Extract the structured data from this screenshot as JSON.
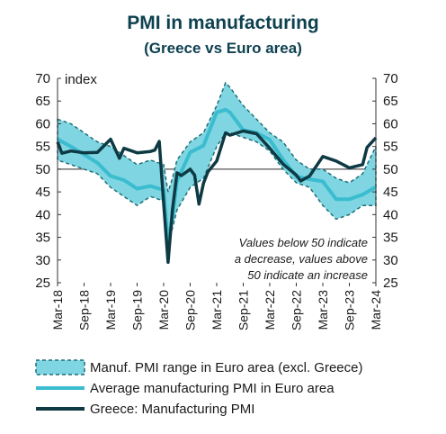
{
  "title": "PMI in manufacturing",
  "subtitle": "(Greece vs Euro area)",
  "colors": {
    "range_fill": "#7fd6e2",
    "range_border": "#1f6f78",
    "euro_avg": "#3bbccf",
    "greece": "#0e3a44",
    "ref_line": "#555555"
  },
  "chart_data": {
    "type": "line",
    "ylabel": "index",
    "ylim": [
      25,
      70
    ],
    "yticks": [
      25,
      30,
      35,
      40,
      45,
      50,
      55,
      60,
      65,
      70
    ],
    "xticks": [
      "Mar-18",
      "Sep-18",
      "Mar-19",
      "Sep-19",
      "Mar-20",
      "Sep-20",
      "Mar-21",
      "Sep-21",
      "Mar-22",
      "Sep-22",
      "Mar-23",
      "Sep-23",
      "Mar-24"
    ],
    "reference_line": 50,
    "annotation": [
      "Values below 50 indicate",
      "a decrease, values above",
      "50 indicate an increase"
    ],
    "legend": [
      {
        "label": "Manuf. PMI range in Euro area (excl. Greece)",
        "kind": "band"
      },
      {
        "label": "Average manufacturing PMI in Euro area",
        "kind": "line"
      },
      {
        "label": "Greece: Manufacturing PMI",
        "kind": "line"
      }
    ],
    "series": [
      {
        "name": "Manuf. PMI range in Euro area (excl. Greece)",
        "type": "range",
        "x": [
          "Mar-18",
          "Jun-18",
          "Sep-18",
          "Dec-18",
          "Mar-19",
          "Jun-19",
          "Sep-19",
          "Dec-19",
          "Mar-20",
          "Apr-20",
          "May-20",
          "Jun-20",
          "Sep-20",
          "Dec-20",
          "Mar-21",
          "May-21",
          "Jun-21",
          "Sep-21",
          "Dec-21",
          "Mar-22",
          "Jun-22",
          "Sep-22",
          "Dec-22",
          "Mar-23",
          "Jun-23",
          "Sep-23",
          "Dec-23",
          "Mar-24"
        ],
        "low": [
          52,
          51,
          50,
          49,
          46,
          44,
          42,
          44,
          43,
          33,
          37,
          41,
          46,
          48,
          55,
          58,
          58,
          57,
          56,
          54,
          50,
          47,
          46,
          42,
          39,
          40,
          42,
          42
        ],
        "high": [
          61,
          60,
          58,
          56,
          55,
          53,
          51,
          52,
          51,
          45,
          48,
          52,
          56,
          58,
          64,
          69,
          68,
          64,
          61,
          58,
          56,
          52,
          50,
          50,
          48,
          47,
          49,
          55
        ]
      },
      {
        "name": "Average manufacturing PMI in Euro area",
        "x": [
          "Mar-18",
          "Jun-18",
          "Sep-18",
          "Dec-18",
          "Mar-19",
          "Jun-19",
          "Sep-19",
          "Dec-19",
          "Mar-20",
          "Apr-20",
          "May-20",
          "Jun-20",
          "Sep-20",
          "Dec-20",
          "Mar-21",
          "May-21",
          "Jun-21",
          "Sep-21",
          "Dec-21",
          "Mar-22",
          "Jun-22",
          "Sep-22",
          "Dec-22",
          "Mar-23",
          "Jun-23",
          "Sep-23",
          "Dec-23",
          "Mar-24"
        ],
        "values": [
          56.6,
          55,
          53.2,
          51.4,
          48.5,
          47.6,
          45.7,
          46.3,
          45.4,
          33.4,
          39.4,
          47.4,
          53.7,
          55.2,
          62.5,
          63.1,
          62.5,
          58.6,
          58,
          56.5,
          52.1,
          48.4,
          47.8,
          47.3,
          43.4,
          43.4,
          44.4,
          46.1
        ]
      },
      {
        "name": "Greece: Manufacturing PMI",
        "x": [
          "Mar-18",
          "Apr-18",
          "Jun-18",
          "Sep-18",
          "Dec-18",
          "Mar-19",
          "May-19",
          "Jun-19",
          "Sep-19",
          "Dec-19",
          "Jan-20",
          "Feb-20",
          "Mar-20",
          "Apr-20",
          "May-20",
          "Jun-20",
          "Jul-20",
          "Sep-20",
          "Oct-20",
          "Nov-20",
          "Dec-20",
          "Jan-21",
          "Mar-21",
          "May-21",
          "Jun-21",
          "Sep-21",
          "Dec-21",
          "Mar-22",
          "Jun-22",
          "Sep-22",
          "Oct-22",
          "Dec-22",
          "Mar-23",
          "Jun-23",
          "Sep-23",
          "Dec-23",
          "Jan-24",
          "Mar-24"
        ],
        "values": [
          56,
          53.5,
          54,
          53.6,
          53.7,
          56.6,
          52.4,
          54.6,
          53.6,
          53.9,
          54.2,
          56.1,
          42.5,
          29.5,
          41.1,
          49.2,
          48.6,
          50,
          48.7,
          42.3,
          46.9,
          49.4,
          51.8,
          58,
          57.5,
          58.4,
          57.8,
          54.6,
          51.1,
          48.7,
          47.4,
          48.5,
          52.8,
          51.8,
          50.3,
          51,
          54.8,
          56.9
        ]
      }
    ]
  }
}
